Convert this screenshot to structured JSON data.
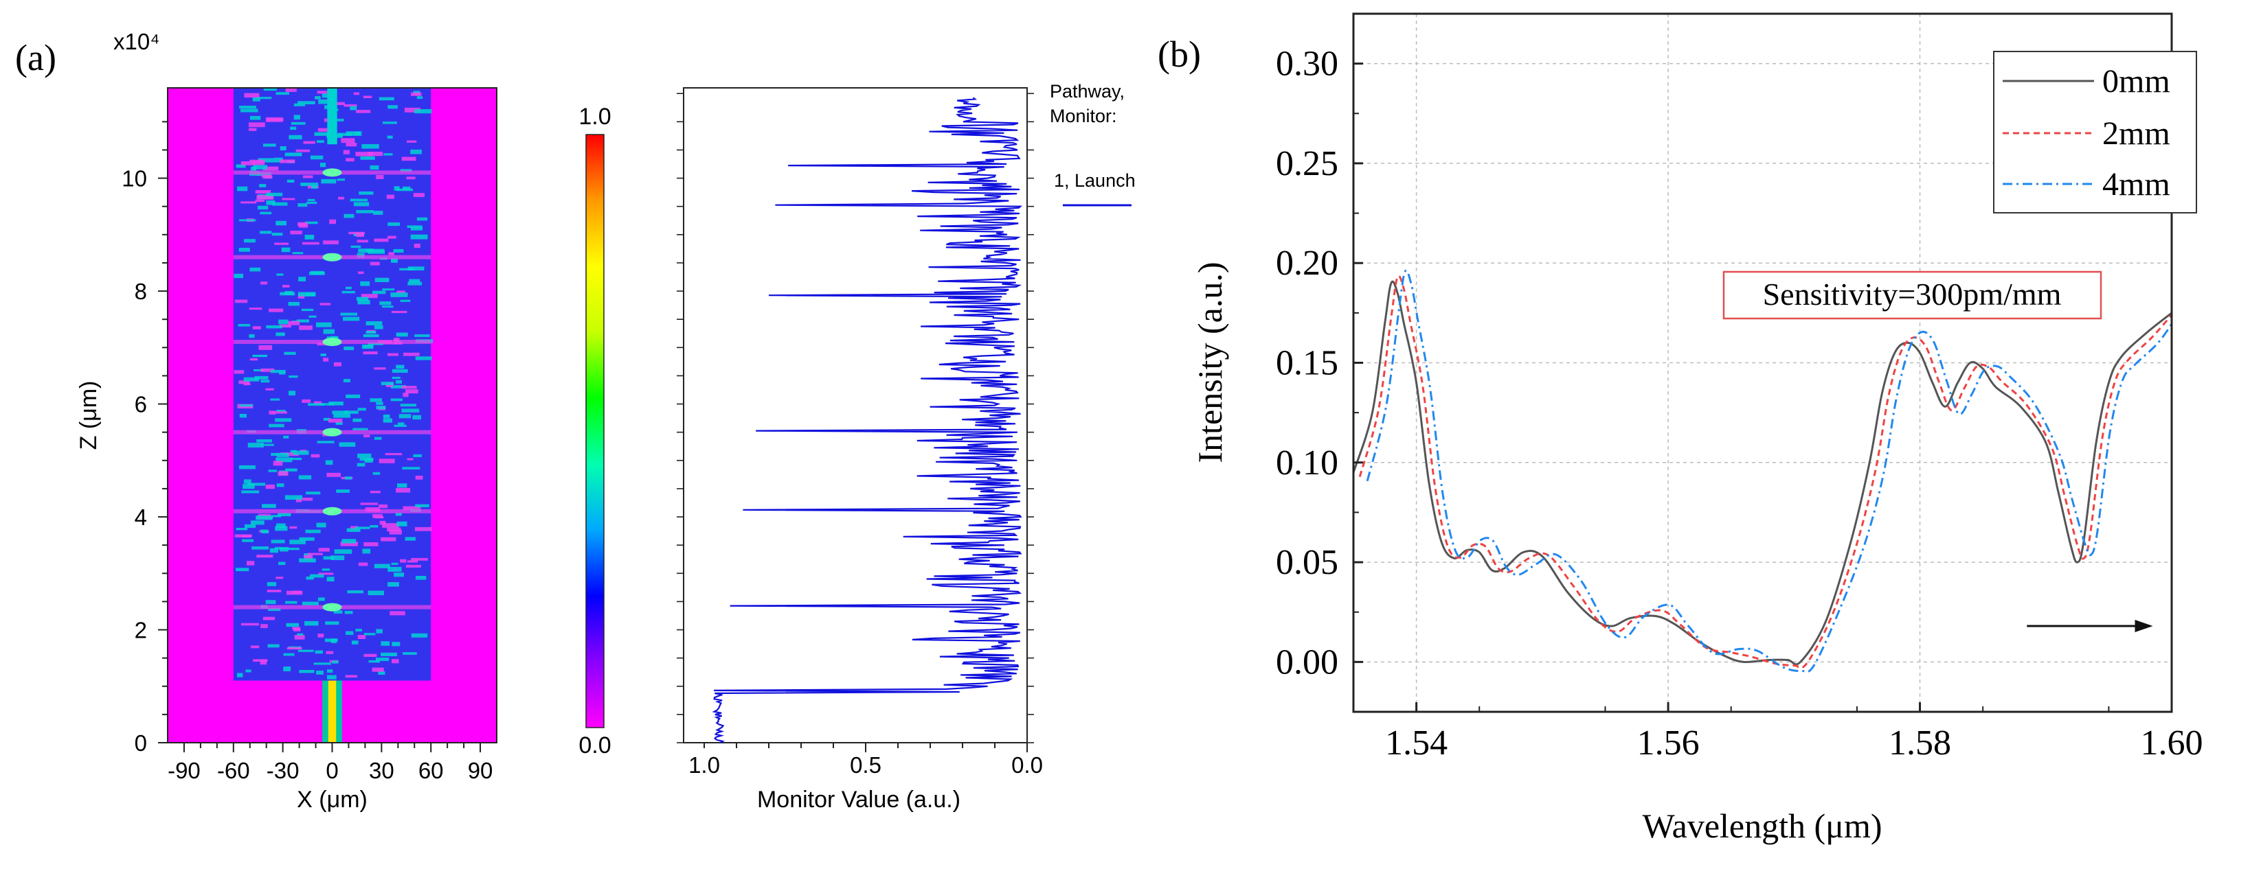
{
  "panel_a": {
    "label": "(a)",
    "exponent_label": "x10⁴",
    "field_map": {
      "x_label": "X (μm)",
      "y_label": "Z (μm)",
      "x_ticks": [
        -90,
        -60,
        -30,
        0,
        30,
        60,
        90
      ],
      "y_ticks": [
        0,
        2,
        4,
        6,
        8,
        10
      ],
      "x_range": [
        -100,
        100
      ],
      "y_range": [
        0,
        11.6
      ],
      "core_half_width_um": 60,
      "fiber_half_width_um": 6,
      "lead_fiber_end": 1.1,
      "colors": {
        "cladding": "#ff00ff",
        "core": "#3333ee",
        "pattern": "#00d2d2",
        "edge": "#ee44ee"
      }
    },
    "colorbar": {
      "ticks": [
        "1.0",
        "0.0"
      ],
      "gradient": [
        "#ff00ff",
        "#8a00ff",
        "#0000ff",
        "#00a8ff",
        "#00ffb0",
        "#00ff00",
        "#c8ff00",
        "#ffff00",
        "#ff9900",
        "#ff0000"
      ]
    },
    "monitor": {
      "x_label": "Monitor Value (a.u.)",
      "x_ticks": [
        "1.0",
        "0.5",
        "0.0"
      ],
      "legend_title_1": "Pathway,",
      "legend_title_2": "Monitor:",
      "legend_entry": "1, Launch",
      "line_color": "#1010dd",
      "spikes": [
        {
          "z": 0.92,
          "v": 0.97
        },
        {
          "z": 2.42,
          "v": 0.92
        },
        {
          "z": 4.12,
          "v": 0.88
        },
        {
          "z": 5.52,
          "v": 0.84
        },
        {
          "z": 7.92,
          "v": 0.8
        },
        {
          "z": 9.52,
          "v": 0.78
        },
        {
          "z": 10.22,
          "v": 0.74
        }
      ]
    }
  },
  "panel_b": {
    "label": "(b)",
    "annotation": "Sensitivity=300pm/mm",
    "chart_data": {
      "type": "line",
      "title": "",
      "xlabel": "Wavelength (μm)",
      "ylabel": "Intensity (a.u.)",
      "xlim": [
        1.535,
        1.6
      ],
      "ylim": [
        -0.025,
        0.325
      ],
      "x_ticks": [
        "1.54",
        "1.56",
        "1.58",
        "1.60"
      ],
      "y_ticks": [
        "0.00",
        "0.05",
        "0.10",
        "0.15",
        "0.20",
        "0.25",
        "0.30"
      ],
      "grid": true,
      "legend_position": "top-right",
      "series": [
        {
          "name": "0mm",
          "color": "#555555",
          "dash": "",
          "shift": 0.0
        },
        {
          "name": "2mm",
          "color": "#ee4444",
          "dash": "9,6",
          "shift": 0.0005
        },
        {
          "name": "4mm",
          "color": "#2288ee",
          "dash": "14,6,3,6",
          "shift": 0.0011
        }
      ],
      "base_curve": [
        [
          1.535,
          0.095
        ],
        [
          1.5365,
          0.125
        ],
        [
          1.5375,
          0.17
        ],
        [
          1.538,
          0.19
        ],
        [
          1.5385,
          0.185
        ],
        [
          1.539,
          0.17
        ],
        [
          1.54,
          0.14
        ],
        [
          1.541,
          0.09
        ],
        [
          1.542,
          0.06
        ],
        [
          1.543,
          0.052
        ],
        [
          1.544,
          0.056
        ],
        [
          1.545,
          0.055
        ],
        [
          1.546,
          0.046
        ],
        [
          1.547,
          0.047
        ],
        [
          1.5485,
          0.055
        ],
        [
          1.55,
          0.053
        ],
        [
          1.552,
          0.035
        ],
        [
          1.554,
          0.022
        ],
        [
          1.5555,
          0.018
        ],
        [
          1.557,
          0.022
        ],
        [
          1.559,
          0.023
        ],
        [
          1.5605,
          0.019
        ],
        [
          1.5625,
          0.01
        ],
        [
          1.5645,
          0.003
        ],
        [
          1.566,
          0.0
        ],
        [
          1.568,
          0.001
        ],
        [
          1.5695,
          0.001
        ],
        [
          1.5705,
          0.0
        ],
        [
          1.5725,
          0.02
        ],
        [
          1.5745,
          0.06
        ],
        [
          1.576,
          0.1
        ],
        [
          1.577,
          0.135
        ],
        [
          1.578,
          0.155
        ],
        [
          1.579,
          0.16
        ],
        [
          1.58,
          0.155
        ],
        [
          1.581,
          0.14
        ],
        [
          1.582,
          0.128
        ],
        [
          1.583,
          0.14
        ],
        [
          1.584,
          0.15
        ],
        [
          1.585,
          0.147
        ],
        [
          1.586,
          0.138
        ],
        [
          1.588,
          0.128
        ],
        [
          1.59,
          0.11
        ],
        [
          1.591,
          0.085
        ],
        [
          1.592,
          0.058
        ],
        [
          1.5925,
          0.05
        ],
        [
          1.593,
          0.06
        ],
        [
          1.594,
          0.11
        ],
        [
          1.595,
          0.14
        ],
        [
          1.596,
          0.153
        ],
        [
          1.598,
          0.165
        ],
        [
          1.6,
          0.175
        ]
      ],
      "arrow": {
        "x_from": 1.5885,
        "x_to": 1.5985,
        "y": 0.018
      }
    }
  }
}
